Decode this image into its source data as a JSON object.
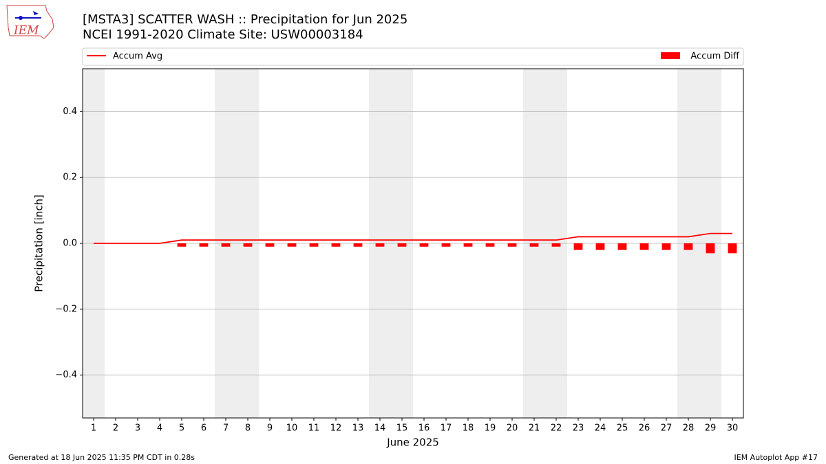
{
  "chart_data": {
    "type": "bar_line",
    "title": "[MSTA3] SCATTER WASH :: Precipitation for Jun 2025",
    "subtitle": "NCEI 1991-2020 Climate Site: USW00003184",
    "y_label": "Precipitation [inch]",
    "x_label": "June 2025",
    "categories": [
      "1",
      "2",
      "3",
      "4",
      "5",
      "6",
      "7",
      "8",
      "9",
      "10",
      "11",
      "12",
      "13",
      "14",
      "15",
      "16",
      "17",
      "18",
      "19",
      "20",
      "21",
      "22",
      "23",
      "24",
      "25",
      "26",
      "27",
      "28",
      "29",
      "30"
    ],
    "series": [
      {
        "name": "Accum Avg",
        "kind": "line",
        "color": "#ff0000",
        "values": [
          0,
          0,
          0,
          0,
          0.01,
          0.01,
          0.01,
          0.01,
          0.01,
          0.01,
          0.01,
          0.01,
          0.01,
          0.01,
          0.01,
          0.01,
          0.01,
          0.01,
          0.01,
          0.01,
          0.01,
          0.01,
          0.02,
          0.02,
          0.02,
          0.02,
          0.02,
          0.02,
          0.03,
          0.03
        ]
      },
      {
        "name": "Accum Diff",
        "kind": "bar",
        "color": "#ff0000",
        "values": [
          0,
          0,
          0,
          0,
          -0.01,
          -0.01,
          -0.01,
          -0.01,
          -0.01,
          -0.01,
          -0.01,
          -0.01,
          -0.01,
          -0.01,
          -0.01,
          -0.01,
          -0.01,
          -0.01,
          -0.01,
          -0.01,
          -0.01,
          -0.01,
          -0.02,
          -0.02,
          -0.02,
          -0.02,
          -0.02,
          -0.02,
          -0.03,
          -0.03
        ]
      }
    ],
    "ylim": [
      -0.53,
      0.53
    ],
    "yticks": [
      {
        "value": -0.4,
        "label": "−0.4"
      },
      {
        "value": -0.2,
        "label": "−0.2"
      },
      {
        "value": 0,
        "label": "0.0"
      },
      0.2,
      0.4
    ],
    "grid": true,
    "weekend_shading": [
      0,
      6,
      7,
      13,
      14,
      20,
      21,
      27,
      28
    ]
  },
  "logo_text": "IEM",
  "footer": {
    "left": "Generated at 18 Jun 2025 11:35 PM CDT in 0.28s",
    "right": "IEM Autoplot App #17"
  }
}
